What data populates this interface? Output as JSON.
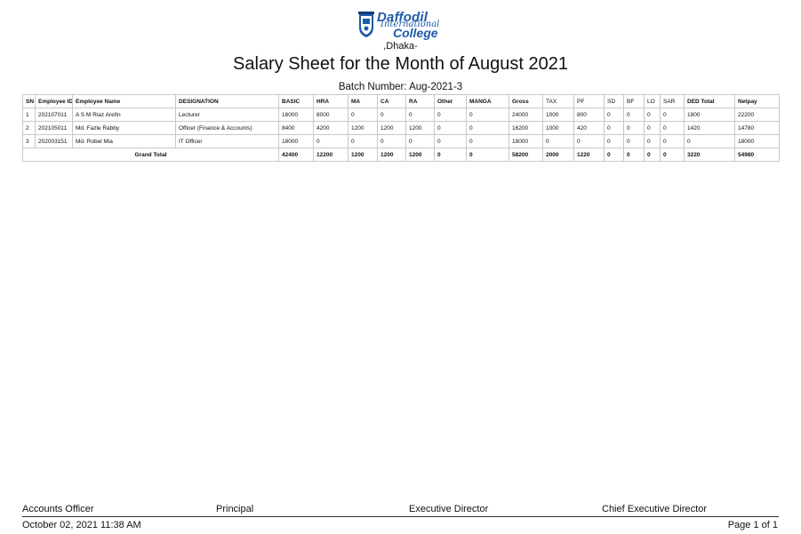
{
  "header": {
    "logo_line1": "Daffodil",
    "logo_line2": "International",
    "logo_line3": "College",
    "location": ",Dhaka-",
    "title": "Salary Sheet for the Month of August 2021",
    "batch": "Batch Number: Aug-2021-3"
  },
  "table": {
    "columns": [
      "SN",
      "Employee ID",
      "Employee Name",
      "DESIGNATION",
      "BASIC",
      "HRA",
      "MA",
      "CA",
      "RA",
      "Other",
      "MANGA",
      "Gross",
      "TAX",
      "PF",
      "SD",
      "BF",
      "LO",
      "SAR",
      "DED Total",
      "Netpay"
    ],
    "rows": [
      [
        "1",
        "202107011",
        "A S M Riaz Arefin",
        "Lecturer",
        "16000",
        "8000",
        "0",
        "0",
        "0",
        "0",
        "0",
        "24000",
        "1000",
        "800",
        "0",
        "0",
        "0",
        "0",
        "1800",
        "22200"
      ],
      [
        "2",
        "202105011",
        "Md. Fazle Rabby",
        "Officer (Finance & Accounts)",
        "8400",
        "4200",
        "1200",
        "1200",
        "1200",
        "0",
        "0",
        "16200",
        "1000",
        "420",
        "0",
        "0",
        "0",
        "0",
        "1420",
        "14780"
      ],
      [
        "3",
        "202003151",
        "Md. Robel Mia",
        "IT Officer",
        "18000",
        "0",
        "0",
        "0",
        "0",
        "0",
        "0",
        "18000",
        "0",
        "0",
        "0",
        "0",
        "0",
        "0",
        "0",
        "18000"
      ]
    ],
    "grand_total_label": "Grand Total",
    "grand_total": [
      "42400",
      "12200",
      "1200",
      "1200",
      "1200",
      "0",
      "0",
      "58200",
      "2000",
      "1220",
      "0",
      "0",
      "0",
      "0",
      "3220",
      "54980"
    ]
  },
  "signatures": {
    "accounts_officer": "Accounts Officer",
    "principal": "Principal",
    "executive_director": "Executive Director",
    "chief_executive_director": "Chief Executive Director"
  },
  "footer": {
    "timestamp": "October 02, 2021 11:38 AM",
    "page": "Page 1 of 1"
  }
}
